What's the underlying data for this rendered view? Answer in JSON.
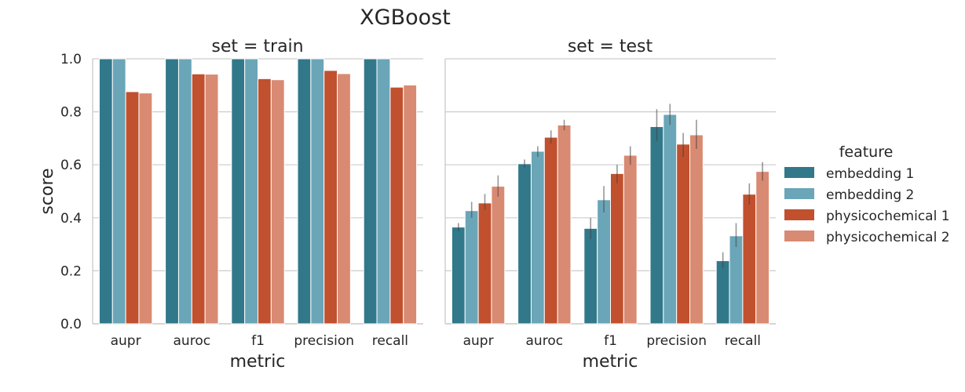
{
  "chart_data": {
    "type": "bar",
    "title": "XGBoost",
    "xlabel": "metric",
    "ylabel": "score",
    "ylim": [
      0,
      1
    ],
    "yticks": [
      "0.0",
      "0.2",
      "0.4",
      "0.6",
      "0.8",
      "1.0"
    ],
    "grid": true,
    "legend": {
      "title": "feature",
      "placement": "right"
    },
    "categories": [
      "aupr",
      "auroc",
      "f1",
      "precision",
      "recall"
    ],
    "series_colors": [
      "#31788a",
      "#6aa6b8",
      "#c1502e",
      "#d98a72"
    ],
    "panels": [
      {
        "title": "set = train",
        "series": [
          {
            "name": "embedding 1",
            "values": [
              1.0,
              1.0,
              1.0,
              1.0,
              1.0
            ],
            "errors": [
              [
                1.0,
                1.0
              ],
              [
                1.0,
                1.0
              ],
              [
                1.0,
                1.0
              ],
              [
                1.0,
                1.0
              ],
              [
                1.0,
                1.0
              ]
            ]
          },
          {
            "name": "embedding 2",
            "values": [
              1.0,
              1.0,
              1.0,
              1.0,
              1.0
            ],
            "errors": [
              [
                1.0,
                1.0
              ],
              [
                1.0,
                1.0
              ],
              [
                1.0,
                1.0
              ],
              [
                1.0,
                1.0
              ],
              [
                1.0,
                1.0
              ]
            ]
          },
          {
            "name": "physicochemical 1",
            "values": [
              0.876,
              0.943,
              0.925,
              0.956,
              0.893
            ],
            "errors": [
              [
                0.874,
                0.878
              ],
              [
                0.941,
                0.945
              ],
              [
                0.923,
                0.927
              ],
              [
                0.954,
                0.958
              ],
              [
                0.891,
                0.895
              ]
            ]
          },
          {
            "name": "physicochemical 2",
            "values": [
              0.871,
              0.942,
              0.921,
              0.944,
              0.901
            ],
            "errors": [
              [
                0.869,
                0.873
              ],
              [
                0.94,
                0.944
              ],
              [
                0.919,
                0.923
              ],
              [
                0.942,
                0.946
              ],
              [
                0.899,
                0.903
              ]
            ]
          }
        ]
      },
      {
        "title": "set = test",
        "series": [
          {
            "name": "embedding 1",
            "values": [
              0.365,
              0.604,
              0.36,
              0.744,
              0.238
            ],
            "errors": [
              [
                0.35,
                0.38
              ],
              [
                0.59,
                0.62
              ],
              [
                0.32,
                0.4
              ],
              [
                0.69,
                0.81
              ],
              [
                0.21,
                0.27
              ]
            ]
          },
          {
            "name": "embedding 2",
            "values": [
              0.427,
              0.651,
              0.468,
              0.79,
              0.332
            ],
            "errors": [
              [
                0.4,
                0.46
              ],
              [
                0.63,
                0.67
              ],
              [
                0.42,
                0.52
              ],
              [
                0.75,
                0.83
              ],
              [
                0.29,
                0.38
              ]
            ]
          },
          {
            "name": "physicochemical 1",
            "values": [
              0.456,
              0.704,
              0.567,
              0.678,
              0.489
            ],
            "errors": [
              [
                0.43,
                0.49
              ],
              [
                0.68,
                0.73
              ],
              [
                0.53,
                0.6
              ],
              [
                0.63,
                0.72
              ],
              [
                0.45,
                0.53
              ]
            ]
          },
          {
            "name": "physicochemical 2",
            "values": [
              0.519,
              0.75,
              0.636,
              0.713,
              0.575
            ],
            "errors": [
              [
                0.48,
                0.56
              ],
              [
                0.73,
                0.77
              ],
              [
                0.6,
                0.67
              ],
              [
                0.66,
                0.77
              ],
              [
                0.54,
                0.61
              ]
            ]
          }
        ]
      }
    ]
  }
}
